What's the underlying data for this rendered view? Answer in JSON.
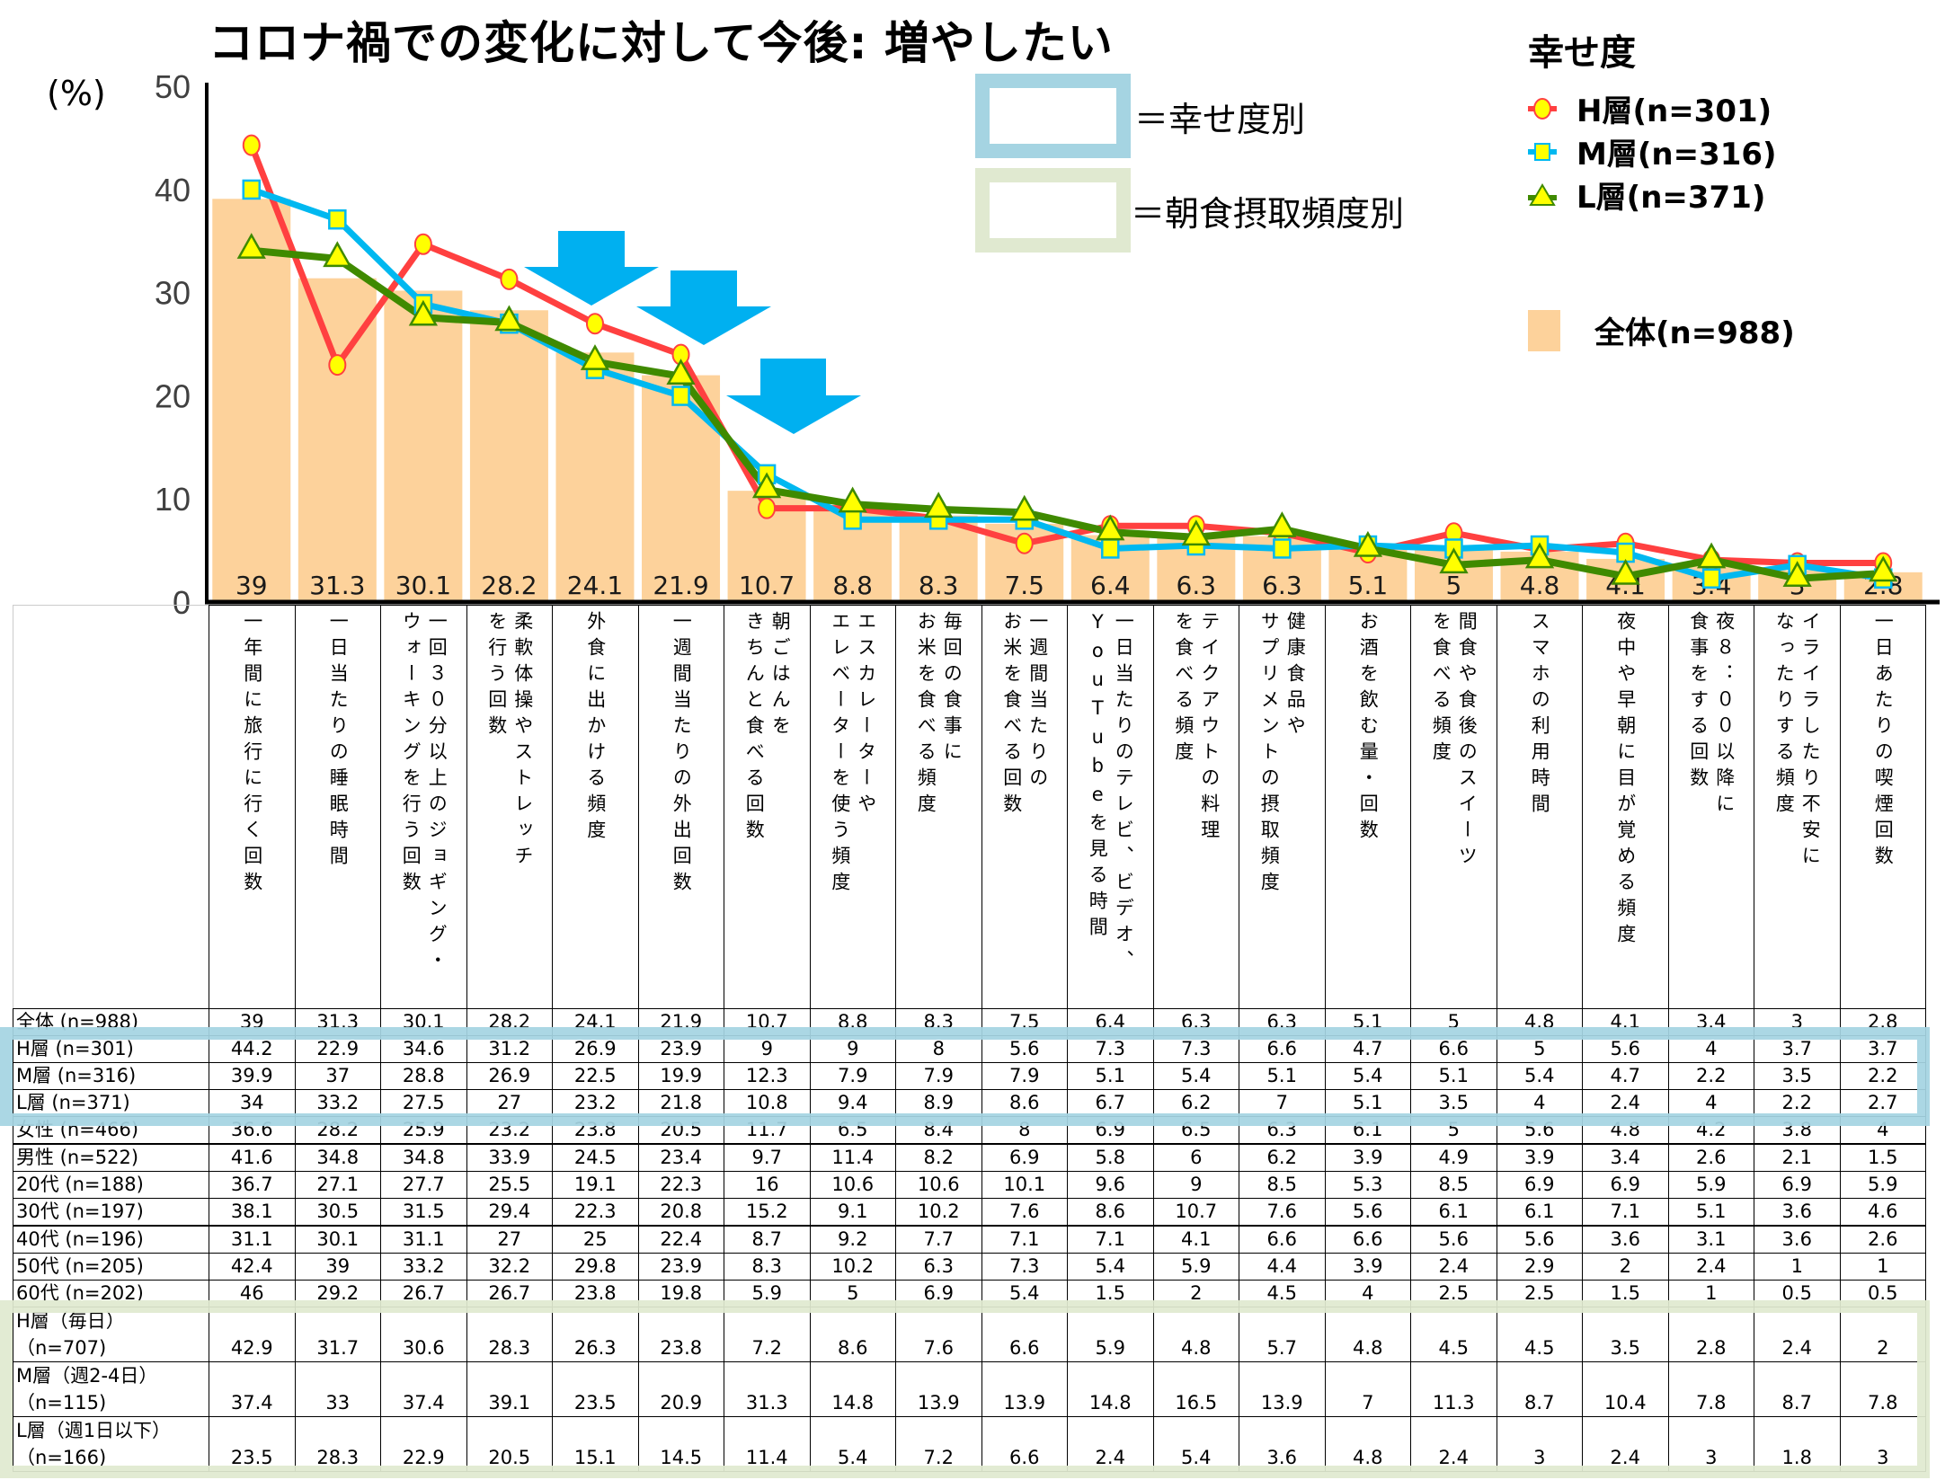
{
  "title": "コロナ禍での変化に対して今後: 増やしたい",
  "unit_label": "(%)",
  "highlight_legend": {
    "happiness": "＝幸せ度別",
    "breakfast": "＝朝食摂取頻度別"
  },
  "legend": {
    "title": "幸せ度",
    "items": [
      {
        "label": "H層(n=301)",
        "marker": "circle",
        "line_color": "#FF4040",
        "fill": "#FFFF00"
      },
      {
        "label": "M層(n=316)",
        "marker": "square",
        "line_color": "#00B8F0",
        "fill": "#FFFF00"
      },
      {
        "label": "L層(n=371)",
        "marker": "triangle",
        "line_color": "#3F8A00",
        "fill": "#FFFF00"
      }
    ],
    "bar_item": {
      "label": "全体(n=988)",
      "color": "#FDD29B"
    }
  },
  "colors": {
    "bar": "#FDD29B",
    "arrow": "#00B0F0",
    "happiness_band": "#A5D4E2",
    "breakfast_band": "#E0E9D0"
  },
  "chart_data": {
    "type": "bar",
    "title": "コロナ禍での変化に対して今後: 増やしたい",
    "xlabel": "",
    "ylabel": "(%)",
    "ylim": [
      0,
      50
    ],
    "yticks": [
      0,
      10,
      20,
      30,
      40,
      50
    ],
    "grid": false,
    "legend_position": "right",
    "categories": [
      "一年間に旅行に行く回数",
      "一日当たりの睡眠時間",
      "一回30分以上のジョギング・ウォーキングを行う回数",
      "柔軟体操やストレッチを行う回数",
      "外食に出かける頻度",
      "一週間当たりの外出回数",
      "朝ごはんをきちんと食べる回数",
      "エスカレーターやエレベーターを使う頻度",
      "毎回の食事にお米を食べる頻度",
      "一週間当たりのお米を食べる回数",
      "一日当たりのテレビ、ビデオ、YouTubeを見る時間",
      "テイクアウトの料理を食べる頻度",
      "健康食品やサプリメントの摂取頻度",
      "お酒を飲む量・回数",
      "間食や食後のスイーツを食べる頻度",
      "スマホの利用時間",
      "夜中や早朝に目が覚める頻度",
      "夜8：00以降に食事をする回数",
      "イライラしたり不安になったりする頻度",
      "一日あたりの喫煙回数"
    ],
    "series": [
      {
        "name": "全体(n=988)",
        "type": "bar",
        "values": [
          39,
          31.3,
          30.1,
          28.2,
          24.1,
          21.9,
          10.7,
          8.8,
          8.3,
          7.5,
          6.4,
          6.3,
          6.3,
          5.1,
          5,
          4.8,
          4.1,
          3.4,
          3,
          2.8
        ]
      },
      {
        "name": "H層(n=301)",
        "type": "line",
        "values": [
          44.2,
          22.9,
          34.6,
          31.2,
          26.9,
          23.9,
          9,
          9,
          8,
          5.6,
          7.3,
          7.3,
          6.6,
          4.7,
          6.6,
          5,
          5.6,
          4,
          3.7,
          3.7
        ]
      },
      {
        "name": "M層(n=316)",
        "type": "line",
        "values": [
          39.9,
          37,
          28.8,
          26.9,
          22.5,
          19.9,
          12.3,
          7.9,
          7.9,
          7.9,
          5.1,
          5.4,
          5.1,
          5.4,
          5.1,
          5.4,
          4.7,
          2.2,
          3.5,
          2.2
        ]
      },
      {
        "name": "L層(n=371)",
        "type": "line",
        "values": [
          34,
          33.2,
          27.5,
          27,
          23.2,
          21.8,
          10.8,
          9.4,
          8.9,
          8.6,
          6.7,
          6.2,
          7,
          5.1,
          3.5,
          4,
          2.4,
          4,
          2.2,
          2.7
        ]
      }
    ],
    "annotations": [
      "down arrows above categories 5, 6 and 7 (外食に出かける頻度, 一週間当たりの外出回数, 朝ごはんをきちんと食べる回数)"
    ]
  },
  "table": {
    "column_headers": [
      "一年間に旅行に行く回数",
      "一日当たりの睡眠時間",
      "一回30分以上のジョギング・ウォーキングを行う回数",
      "柔軟体操やストレッチを行う回数",
      "外食に出かける頻度",
      "一週間当たりの外出回数",
      "朝ごはんをきちんと食べる回数",
      "エスカレーターやエレベーターを使う頻度",
      "毎回の食事にお米を食べる頻度",
      "一週間当たりのお米を食べる回数",
      "一日当たりのテレビ、ビデオ、YouTubeを見る時間",
      "テイクアウトの料理を食べる頻度",
      "健康食品やサプリメントの摂取頻度",
      "お酒を飲む量・回数",
      "間食や食後のスイーツを食べる頻度",
      "スマホの利用時間",
      "夜中や早朝に目が覚める頻度",
      "夜8：00以降に食事をする回数",
      "イライラしたり不安になったりする頻度",
      "一日あたりの喫煙回数"
    ],
    "column_headers_vertical": [
      [
        "一年間に旅行に行く回数"
      ],
      [
        "一日当たりの睡眠時間"
      ],
      [
        "一回３０分以上のジョギング・",
        "ウォーキングを行う回数"
      ],
      [
        "柔軟体操やストレッチ",
        "を行う回数"
      ],
      [
        "外食に出かける頻度"
      ],
      [
        "一週間当たりの外出回数"
      ],
      [
        "朝ごはんを",
        "きちんと食べる回数"
      ],
      [
        "エスカレーターや",
        "エレベーターを使う頻度"
      ],
      [
        "毎回の食事に",
        "お米を食べる頻度"
      ],
      [
        "一週間当たりの",
        "お米を食べる回数"
      ],
      [
        "一日当たりのテレビ、ビデオ、",
        "YouTubeを見る時間"
      ],
      [
        "テイクアウトの料理",
        "を食べる頻度"
      ],
      [
        "健康食品や",
        "サプリメントの摂取頻度"
      ],
      [
        "お酒を飲む量・回数"
      ],
      [
        "間食や食後のスイーツ",
        "を食べる頻度"
      ],
      [
        "スマホの利用時間"
      ],
      [
        "夜中や早朝に目が覚める頻度"
      ],
      [
        "夜８：００以降に",
        "食事をする回数"
      ],
      [
        "イライラしたり不安に",
        "なったりする頻度"
      ],
      [
        "一日あたりの喫煙回数"
      ]
    ],
    "rows": [
      {
        "label": "全体 (n=988)",
        "values": [
          39,
          31.3,
          30.1,
          28.2,
          24.1,
          21.9,
          10.7,
          8.8,
          8.3,
          7.5,
          6.4,
          6.3,
          6.3,
          5.1,
          5,
          4.8,
          4.1,
          3.4,
          3,
          2.8
        ]
      },
      {
        "label": "H層 (n=301)",
        "values": [
          44.2,
          22.9,
          34.6,
          31.2,
          26.9,
          23.9,
          9,
          9,
          8,
          5.6,
          7.3,
          7.3,
          6.6,
          4.7,
          6.6,
          5,
          5.6,
          4,
          3.7,
          3.7
        ]
      },
      {
        "label": "M層 (n=316)",
        "values": [
          39.9,
          37,
          28.8,
          26.9,
          22.5,
          19.9,
          12.3,
          7.9,
          7.9,
          7.9,
          5.1,
          5.4,
          5.1,
          5.4,
          5.1,
          5.4,
          4.7,
          2.2,
          3.5,
          2.2
        ]
      },
      {
        "label": "L層 (n=371)",
        "values": [
          34,
          33.2,
          27.5,
          27,
          23.2,
          21.8,
          10.8,
          9.4,
          8.9,
          8.6,
          6.7,
          6.2,
          7,
          5.1,
          3.5,
          4,
          2.4,
          4,
          2.2,
          2.7
        ]
      },
      {
        "label": "女性 (n=466)",
        "values": [
          36.6,
          28.2,
          25.9,
          23.2,
          23.8,
          20.5,
          11.7,
          6.5,
          8.4,
          8,
          6.9,
          6.5,
          6.3,
          6.1,
          5,
          5.6,
          4.8,
          4.2,
          3.8,
          4
        ]
      },
      {
        "label": "男性 (n=522)",
        "values": [
          41.6,
          34.8,
          34.8,
          33.9,
          24.5,
          23.4,
          9.7,
          11.4,
          8.2,
          6.9,
          5.8,
          6,
          6.2,
          3.9,
          4.9,
          3.9,
          3.4,
          2.6,
          2.1,
          1.5
        ]
      },
      {
        "label": "20代 (n=188)",
        "values": [
          36.7,
          27.1,
          27.7,
          25.5,
          19.1,
          22.3,
          16,
          10.6,
          10.6,
          10.1,
          9.6,
          9,
          8.5,
          5.3,
          8.5,
          6.9,
          6.9,
          5.9,
          6.9,
          5.9
        ]
      },
      {
        "label": "30代 (n=197)",
        "values": [
          38.1,
          30.5,
          31.5,
          29.4,
          22.3,
          20.8,
          15.2,
          9.1,
          10.2,
          7.6,
          8.6,
          10.7,
          7.6,
          5.6,
          6.1,
          6.1,
          7.1,
          5.1,
          3.6,
          4.6
        ]
      },
      {
        "label": "40代 (n=196)",
        "values": [
          31.1,
          30.1,
          31.1,
          27,
          25,
          22.4,
          8.7,
          9.2,
          7.7,
          7.1,
          7.1,
          4.1,
          6.6,
          6.6,
          5.6,
          5.6,
          3.6,
          3.1,
          3.6,
          2.6
        ]
      },
      {
        "label": "50代 (n=205)",
        "values": [
          42.4,
          39,
          33.2,
          32.2,
          29.8,
          23.9,
          8.3,
          10.2,
          6.3,
          7.3,
          5.4,
          5.9,
          4.4,
          3.9,
          2.4,
          2.9,
          2,
          2.4,
          1,
          1
        ]
      },
      {
        "label": "60代 (n=202)",
        "values": [
          46,
          29.2,
          26.7,
          26.7,
          23.8,
          19.8,
          5.9,
          5,
          6.9,
          5.4,
          1.5,
          2,
          4.5,
          4,
          2.5,
          2.5,
          1.5,
          1,
          0.5,
          0.5
        ]
      },
      {
        "label": "H層（毎日）\n（n=707)",
        "label_line1": "H層（毎日）",
        "label_line2": "（n=707)",
        "values": [
          42.9,
          31.7,
          30.6,
          28.3,
          26.3,
          23.8,
          7.2,
          8.6,
          7.6,
          6.6,
          5.9,
          4.8,
          5.7,
          4.8,
          4.5,
          4.5,
          3.5,
          2.8,
          2.4,
          2
        ]
      },
      {
        "label": "M層（週2-4日）\n（n=115)",
        "label_line1": "M層（週2-4日）",
        "label_line2": "（n=115)",
        "values": [
          37.4,
          33,
          37.4,
          39.1,
          23.5,
          20.9,
          31.3,
          14.8,
          13.9,
          13.9,
          14.8,
          16.5,
          13.9,
          7,
          11.3,
          8.7,
          10.4,
          7.8,
          8.7,
          7.8
        ]
      },
      {
        "label": "L層（週1日以下）\n（n=166)",
        "label_line1": "L層（週1日以下）",
        "label_line2": "（n=166)",
        "values": [
          23.5,
          28.3,
          22.9,
          20.5,
          15.1,
          14.5,
          11.4,
          5.4,
          7.2,
          6.6,
          2.4,
          5.4,
          3.6,
          4.8,
          2.4,
          3,
          2.4,
          3,
          1.8,
          3
        ]
      }
    ]
  }
}
